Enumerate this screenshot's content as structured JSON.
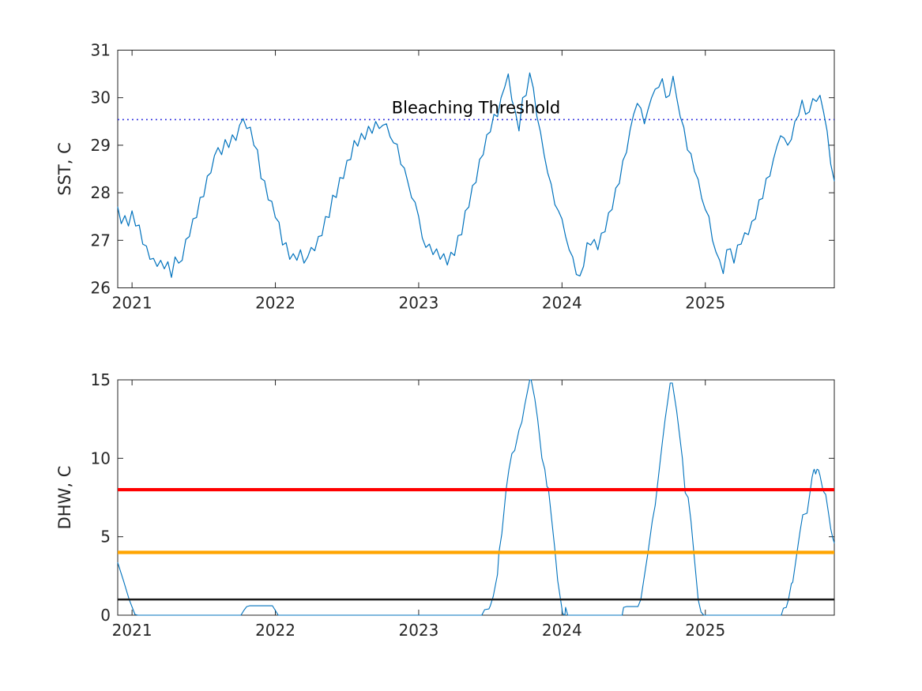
{
  "figure": {
    "background": "#ffffff",
    "text_color": "#262626",
    "axis_color": "#262626",
    "series_blue": "#0072bd"
  },
  "chart_data": [
    {
      "type": "line",
      "title": "",
      "xlabel": "",
      "ylabel": "SST, C",
      "xlim": [
        2020.9,
        2025.9
      ],
      "ylim": [
        26,
        31
      ],
      "grid": false,
      "legend": "none",
      "xticks": [
        2021,
        2022,
        2023,
        2024,
        2025
      ],
      "xtick_labels": [
        "2021",
        "2022",
        "2023",
        "2024",
        "2025"
      ],
      "yticks": [
        26,
        27,
        28,
        29,
        30,
        31
      ],
      "ytick_labels": [
        "26",
        "27",
        "28",
        "29",
        "30",
        "31"
      ],
      "annotation": {
        "text": "Bleaching Threshold",
        "x": 2023.4,
        "y": 29.67
      },
      "threshold_line": {
        "value": 29.54,
        "color": "#2222dd",
        "style": "dotted",
        "label": "Bleaching Threshold"
      },
      "series": [
        {
          "name": "SST",
          "color": "#0072bd",
          "width": 1.2,
          "x_start": 2020.9,
          "x_step": 0.025,
          "values": [
            27.7,
            27.35,
            27.52,
            27.3,
            27.62,
            27.3,
            27.32,
            26.92,
            26.88,
            26.6,
            26.62,
            26.45,
            26.58,
            26.4,
            26.55,
            26.22,
            26.65,
            26.52,
            26.58,
            27.02,
            27.08,
            27.45,
            27.48,
            27.9,
            27.92,
            28.35,
            28.42,
            28.78,
            28.95,
            28.8,
            29.12,
            28.95,
            29.22,
            29.1,
            29.42,
            29.56,
            29.35,
            29.38,
            29.0,
            28.9,
            28.3,
            28.25,
            27.85,
            27.82,
            27.48,
            27.38,
            26.9,
            26.95,
            26.6,
            26.72,
            26.58,
            26.8,
            26.52,
            26.65,
            26.85,
            26.78,
            27.08,
            27.1,
            27.5,
            27.48,
            27.95,
            27.9,
            28.32,
            28.3,
            28.68,
            28.7,
            29.1,
            28.98,
            29.25,
            29.12,
            29.4,
            29.25,
            29.5,
            29.35,
            29.42,
            29.45,
            29.18,
            29.05,
            29.02,
            28.6,
            28.52,
            28.22,
            27.9,
            27.8,
            27.5,
            27.05,
            26.85,
            26.92,
            26.7,
            26.82,
            26.6,
            26.72,
            26.48,
            26.75,
            26.68,
            27.1,
            27.12,
            27.62,
            27.7,
            28.15,
            28.22,
            28.7,
            28.8,
            29.22,
            29.28,
            29.65,
            29.6,
            30.0,
            30.22,
            30.5,
            29.95,
            29.7,
            29.3,
            30.0,
            30.05,
            30.52,
            30.2,
            29.6,
            29.28,
            28.8,
            28.42,
            28.18,
            27.75,
            27.62,
            27.45,
            27.08,
            26.8,
            26.65,
            26.28,
            26.25,
            26.45,
            26.95,
            26.9,
            27.02,
            26.8,
            27.15,
            27.18,
            27.58,
            27.65,
            28.1,
            28.2,
            28.68,
            28.85,
            29.32,
            29.65,
            29.88,
            29.78,
            29.45,
            29.75,
            30.0,
            30.18,
            30.22,
            30.4,
            30.0,
            30.05,
            30.45,
            30.0,
            29.6,
            29.38,
            28.9,
            28.82,
            28.45,
            28.28,
            27.88,
            27.65,
            27.5,
            27.0,
            26.75,
            26.58,
            26.3,
            26.8,
            26.82,
            26.52,
            26.9,
            26.92,
            27.16,
            27.12,
            27.4,
            27.45,
            27.85,
            27.88,
            28.3,
            28.35,
            28.7,
            28.98,
            29.2,
            29.15,
            29.0,
            29.12,
            29.5,
            29.62,
            29.95,
            29.65,
            29.7,
            29.98,
            29.92,
            30.05,
            29.7,
            29.3,
            28.6,
            28.25
          ]
        }
      ]
    },
    {
      "type": "line",
      "title": "",
      "xlabel": "",
      "ylabel": "DHW, C",
      "xlim": [
        2020.9,
        2025.9
      ],
      "ylim": [
        0,
        15
      ],
      "grid": false,
      "legend": "none",
      "xticks": [
        2021,
        2022,
        2023,
        2024,
        2025
      ],
      "xtick_labels": [
        "2021",
        "2022",
        "2023",
        "2024",
        "2025"
      ],
      "yticks": [
        0,
        5,
        10,
        15
      ],
      "ytick_labels": [
        "0",
        "5",
        "10",
        "15"
      ],
      "hlines": [
        {
          "value": 8,
          "color": "#ff0000",
          "width": 4.2
        },
        {
          "value": 4,
          "color": "#ffa500",
          "width": 4.2
        },
        {
          "value": 1,
          "color": "#1a1a1a",
          "width": 2.5
        }
      ],
      "series": [
        {
          "name": "DHW",
          "color": "#0072bd",
          "width": 1.1,
          "points": [
            [
              2020.9,
              3.35
            ],
            [
              2020.94,
              2.2
            ],
            [
              2020.98,
              1.0
            ],
            [
              2021.02,
              0.05
            ],
            [
              2021.04,
              0.0
            ],
            [
              2021.76,
              0.0
            ],
            [
              2021.78,
              0.3
            ],
            [
              2021.8,
              0.55
            ],
            [
              2021.82,
              0.6
            ],
            [
              2021.98,
              0.6
            ],
            [
              2022.0,
              0.3
            ],
            [
              2022.02,
              0.0
            ],
            [
              2023.44,
              0.0
            ],
            [
              2023.46,
              0.35
            ],
            [
              2023.49,
              0.4
            ],
            [
              2023.5,
              0.6
            ],
            [
              2023.52,
              1.2
            ],
            [
              2023.55,
              2.6
            ],
            [
              2023.56,
              4.0
            ],
            [
              2023.58,
              5.2
            ],
            [
              2023.61,
              8.0
            ],
            [
              2023.63,
              9.3
            ],
            [
              2023.65,
              10.3
            ],
            [
              2023.67,
              10.5
            ],
            [
              2023.7,
              11.8
            ],
            [
              2023.72,
              12.3
            ],
            [
              2023.74,
              13.4
            ],
            [
              2023.76,
              14.3
            ],
            [
              2023.775,
              15.0
            ],
            [
              2023.785,
              15.0
            ],
            [
              2023.81,
              13.8
            ],
            [
              2023.83,
              12.5
            ],
            [
              2023.86,
              10.0
            ],
            [
              2023.88,
              9.3
            ],
            [
              2023.895,
              8.2
            ],
            [
              2023.905,
              8.1
            ],
            [
              2023.92,
              6.8
            ],
            [
              2023.95,
              4.2
            ],
            [
              2023.97,
              2.2
            ],
            [
              2023.99,
              1.0
            ],
            [
              2024.005,
              0.1
            ],
            [
              2024.02,
              0.0
            ],
            [
              2024.025,
              0.5
            ],
            [
              2024.04,
              0.0
            ],
            [
              2024.42,
              0.0
            ],
            [
              2024.43,
              0.5
            ],
            [
              2024.45,
              0.55
            ],
            [
              2024.53,
              0.55
            ],
            [
              2024.55,
              1.0
            ],
            [
              2024.57,
              2.2
            ],
            [
              2024.6,
              4.0
            ],
            [
              2024.63,
              6.0
            ],
            [
              2024.65,
              7.0
            ],
            [
              2024.67,
              8.6
            ],
            [
              2024.7,
              11.0
            ],
            [
              2024.72,
              12.5
            ],
            [
              2024.74,
              13.8
            ],
            [
              2024.755,
              14.8
            ],
            [
              2024.77,
              14.8
            ],
            [
              2024.8,
              13.0
            ],
            [
              2024.82,
              11.5
            ],
            [
              2024.84,
              10.0
            ],
            [
              2024.86,
              7.8
            ],
            [
              2024.88,
              7.5
            ],
            [
              2024.9,
              6.0
            ],
            [
              2024.92,
              4.0
            ],
            [
              2024.95,
              1.0
            ],
            [
              2024.97,
              0.2
            ],
            [
              2024.99,
              0.0
            ],
            [
              2025.53,
              0.0
            ],
            [
              2025.545,
              0.45
            ],
            [
              2025.565,
              0.5
            ],
            [
              2025.58,
              1.0
            ],
            [
              2025.6,
              2.0
            ],
            [
              2025.61,
              2.1
            ],
            [
              2025.64,
              4.0
            ],
            [
              2025.66,
              5.3
            ],
            [
              2025.68,
              6.4
            ],
            [
              2025.71,
              6.5
            ],
            [
              2025.73,
              7.8
            ],
            [
              2025.745,
              8.8
            ],
            [
              2025.755,
              9.2
            ],
            [
              2025.76,
              9.3
            ],
            [
              2025.77,
              9.0
            ],
            [
              2025.78,
              9.3
            ],
            [
              2025.79,
              9.25
            ],
            [
              2025.8,
              8.9
            ],
            [
              2025.82,
              8.0
            ],
            [
              2025.83,
              7.8
            ],
            [
              2025.84,
              7.7
            ],
            [
              2025.86,
              6.5
            ],
            [
              2025.875,
              5.5
            ],
            [
              2025.89,
              4.9
            ],
            [
              2025.9,
              4.6
            ]
          ]
        }
      ]
    }
  ]
}
